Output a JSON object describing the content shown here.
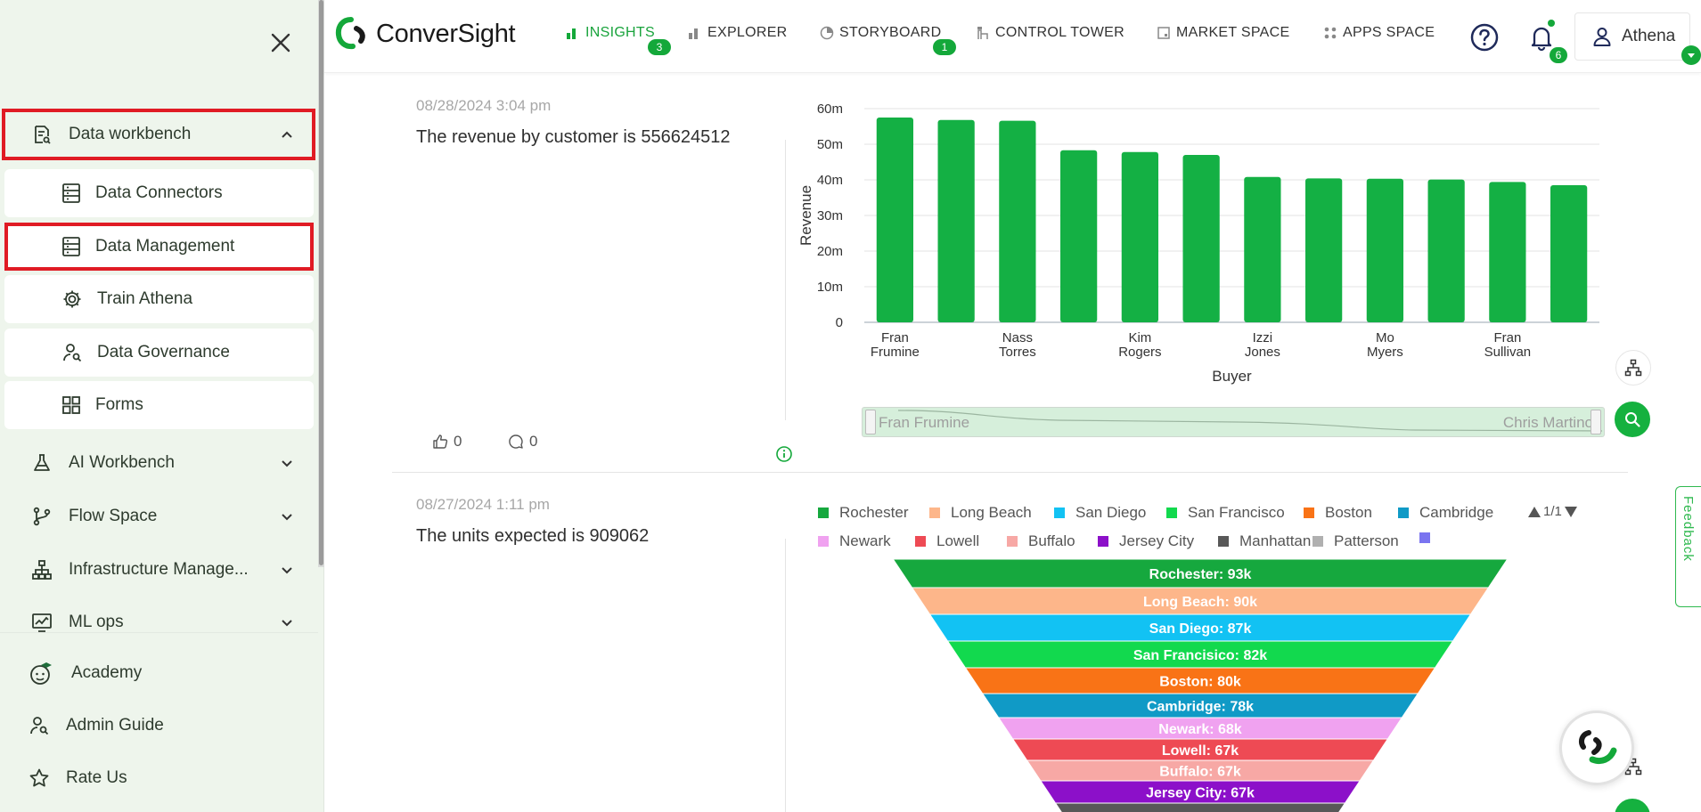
{
  "sidebar": {
    "sections": [
      {
        "label": "Data workbench",
        "expanded": true,
        "highlighted": true
      },
      {
        "label": "AI Workbench"
      },
      {
        "label": "Flow Space"
      },
      {
        "label": "Infrastructure Manage..."
      },
      {
        "label": "ML ops"
      }
    ],
    "sub_items": [
      {
        "label": "Data Connectors",
        "icon": "database-icon"
      },
      {
        "label": "Data Management",
        "icon": "database-icon",
        "highlighted": true
      },
      {
        "label": "Train Athena",
        "icon": "gear-icon"
      },
      {
        "label": "Data Governance",
        "icon": "user-search-icon"
      },
      {
        "label": "Forms",
        "icon": "grid-icon"
      }
    ],
    "bottom_links": [
      {
        "label": "Academy",
        "icon": "academy-icon"
      },
      {
        "label": "Admin Guide",
        "icon": "admin-guide-icon"
      },
      {
        "label": "Rate Us",
        "icon": "star-icon"
      }
    ]
  },
  "header": {
    "logo_text": "ConverSight",
    "tabs": [
      {
        "label": "INSIGHTS",
        "active": true,
        "badge": "3"
      },
      {
        "label": "EXPLORER"
      },
      {
        "label": "STORYBOARD",
        "badge": "1"
      },
      {
        "label": "CONTROL TOWER"
      },
      {
        "label": "MARKET SPACE"
      },
      {
        "label": "APPS SPACE"
      }
    ],
    "notifications_count": "6",
    "user_name": "Athena"
  },
  "insights": [
    {
      "date": "08/28/2024 3:04 pm",
      "text": "The revenue by customer is 556624512",
      "likes": "0",
      "comments": "0"
    },
    {
      "date": "08/27/2024 1:11 pm",
      "text": "The units expected is 909062"
    }
  ],
  "slider": {
    "left_label": "Fran Frumine",
    "right_label": "Chris Martino"
  },
  "feedback_label": "Feedback",
  "legend_pager": "1/1",
  "colors": {
    "accent": "#14a83a",
    "highlight_border": "#e01b24",
    "sidebar_bg": "#eef5ec"
  },
  "chart_data": [
    {
      "type": "bar",
      "xlabel": "Buyer",
      "ylabel": "Revenue",
      "ylim": [
        0,
        60000000
      ],
      "y_ticks": [
        "0",
        "10m",
        "20m",
        "30m",
        "40m",
        "50m",
        "60m"
      ],
      "x_tick_labels": [
        {
          "index": 0,
          "lines": [
            "Fran",
            "Frumine"
          ]
        },
        {
          "index": 2,
          "lines": [
            "Nass",
            "Torres"
          ]
        },
        {
          "index": 4,
          "lines": [
            "Kim",
            "Rogers"
          ]
        },
        {
          "index": 6,
          "lines": [
            "Izzi",
            "Jones"
          ]
        },
        {
          "index": 8,
          "lines": [
            "Mo",
            "Myers"
          ]
        },
        {
          "index": 10,
          "lines": [
            "Fran",
            "Sullivan"
          ]
        }
      ],
      "values": [
        57500000,
        56800000,
        56600000,
        48300000,
        47800000,
        47000000,
        40800000,
        40400000,
        40300000,
        40100000,
        39400000,
        38500000
      ],
      "bar_color": "#14b044",
      "grid": true
    },
    {
      "type": "funnel",
      "series": [
        {
          "name": "Rochester",
          "label": "Rochester: 93k",
          "value": 93000,
          "color": "#16a83e"
        },
        {
          "name": "Long Beach",
          "label": "Long Beach: 90k",
          "value": 90000,
          "color": "#fdb68a"
        },
        {
          "name": "San Diego",
          "label": "San Diego: 87k",
          "value": 87000,
          "color": "#12c2f3"
        },
        {
          "name": "San Francisco",
          "label": "San Francisico: 82k",
          "value": 82000,
          "color": "#12d94e"
        },
        {
          "name": "Boston",
          "label": "Boston: 80k",
          "value": 80000,
          "color": "#f97316"
        },
        {
          "name": "Cambridge",
          "label": "Cambridge: 78k",
          "value": 78000,
          "color": "#109ac6"
        },
        {
          "name": "Newark",
          "label": "Newark: 68k",
          "value": 68000,
          "color": "#f0a2f0"
        },
        {
          "name": "Lowell",
          "label": "Lowell: 67k",
          "value": 67000,
          "color": "#ee4a54"
        },
        {
          "name": "Buffalo",
          "label": "Buffalo: 67k",
          "value": 67000,
          "color": "#f7a8a5"
        },
        {
          "name": "Jersey City",
          "label": "Jersey City: 67k",
          "value": 67000,
          "color": "#8c10c9"
        },
        {
          "name": "Manhattan",
          "label": "",
          "value": 65000,
          "color": "#585858"
        },
        {
          "name": "Patterson",
          "label": "",
          "color": "#b0b0b0"
        },
        {
          "name": "",
          "label": "",
          "color": "#7a74f0"
        }
      ]
    }
  ]
}
